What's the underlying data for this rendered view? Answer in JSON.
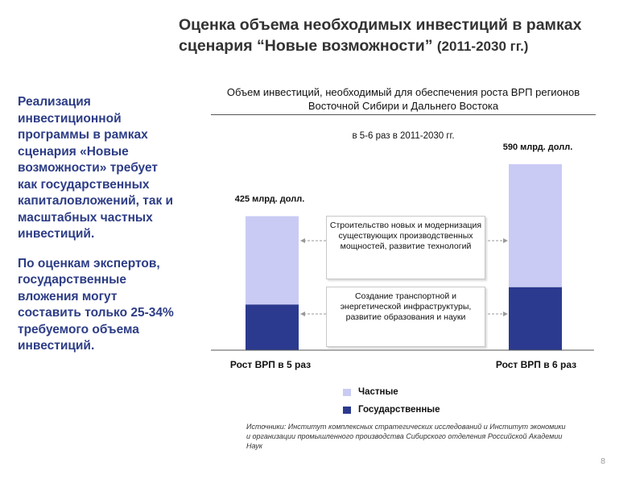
{
  "title": {
    "line1": "Оценка объема необходимых инвестиций в рамках",
    "line2": "сценария “Новые возможности”",
    "line2_years": "(2011-2030 гг.)"
  },
  "left_text": {
    "para1": "Реализация инвестиционной программы в рамках сценария «Новые возможности» требует как государственных капиталовложений, так и масштабных частных инвестиций.",
    "para2": "По оценкам экспертов, государственные вложения могут составить только 25-34% требуемого объема инвестиций."
  },
  "chart_data": {
    "type": "bar",
    "stacked": true,
    "title": "Объем инвестиций, необходимый для обеспечения роста ВРП регионов Восточной Сибири и Дальнего Востока",
    "subtitle": "в 5-6 раз в 2011-2030 гг.",
    "categories": [
      "Рост ВРП в 5 раз",
      "Рост ВРП в 6 раз"
    ],
    "series": [
      {
        "name": "Государственные",
        "values": [
          145,
          200
        ],
        "color": "#2b3a8f"
      },
      {
        "name": "Частные",
        "values": [
          280,
          390
        ],
        "color": "#c9cbf4"
      }
    ],
    "totals": [
      425,
      590
    ],
    "total_labels": [
      "425 млрд. долл.",
      "590 млрд. долл."
    ],
    "ylim": [
      0,
      600
    ],
    "legend_position": "bottom",
    "annotations": [
      "Строительство новых и модернизация существующих производственных мощностей, развитие технологий",
      "Создание транспортной и энергетической инфраструктуры, развитие образования и науки"
    ]
  },
  "legend": {
    "private_label": "Частные",
    "state_label": "Государственные",
    "private_color": "#c9cbf4",
    "state_color": "#2b3a8f"
  },
  "sources": "Источники: Институт комплексных стратегических исследований и Институт экономики и организации промышленного производства Сибирского отделения Российской Академии Наук",
  "page_number": "8"
}
